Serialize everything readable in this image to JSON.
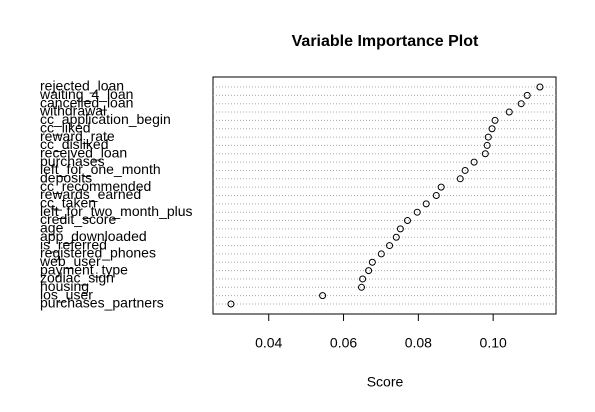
{
  "chart_data": {
    "type": "dotchart",
    "title": "Variable Importance Plot",
    "x_label": "Score",
    "categories": [
      "rejected_loan",
      "waiting_4_loan",
      "cancelled_loan",
      "withdrawal",
      "cc_application_begin",
      "cc_liked",
      "reward_rate",
      "cc_disliked",
      "received_loan",
      "purchases",
      "left_for_one_month",
      "deposits",
      "cc_recommended",
      "rewards_earned",
      "cc_taken",
      "left_for_two_month_plus",
      "credit_score",
      "age",
      "app_downloaded",
      "is_referred",
      "registered_phones",
      "web_user",
      "payment_type",
      "zodiac_sign",
      "housing",
      "los_user",
      "purchases_partners"
    ],
    "values": [
      0.1125,
      0.1091,
      0.1075,
      0.1043,
      0.1005,
      0.0997,
      0.0987,
      0.0984,
      0.0979,
      0.0949,
      0.0925,
      0.0912,
      0.0861,
      0.0848,
      0.0821,
      0.0797,
      0.0771,
      0.0752,
      0.0741,
      0.0723,
      0.0701,
      0.0677,
      0.0667,
      0.0651,
      0.0648,
      0.0544,
      0.0299
    ],
    "xlim": [
      0.0251,
      0.1168
    ],
    "xticks": [
      {
        "value": 0.04,
        "label": "0.04"
      },
      {
        "value": 0.06,
        "label": "0.06"
      },
      {
        "value": 0.08,
        "label": "0.08"
      },
      {
        "value": 0.1,
        "label": "0.10"
      }
    ],
    "color": "#000000"
  }
}
